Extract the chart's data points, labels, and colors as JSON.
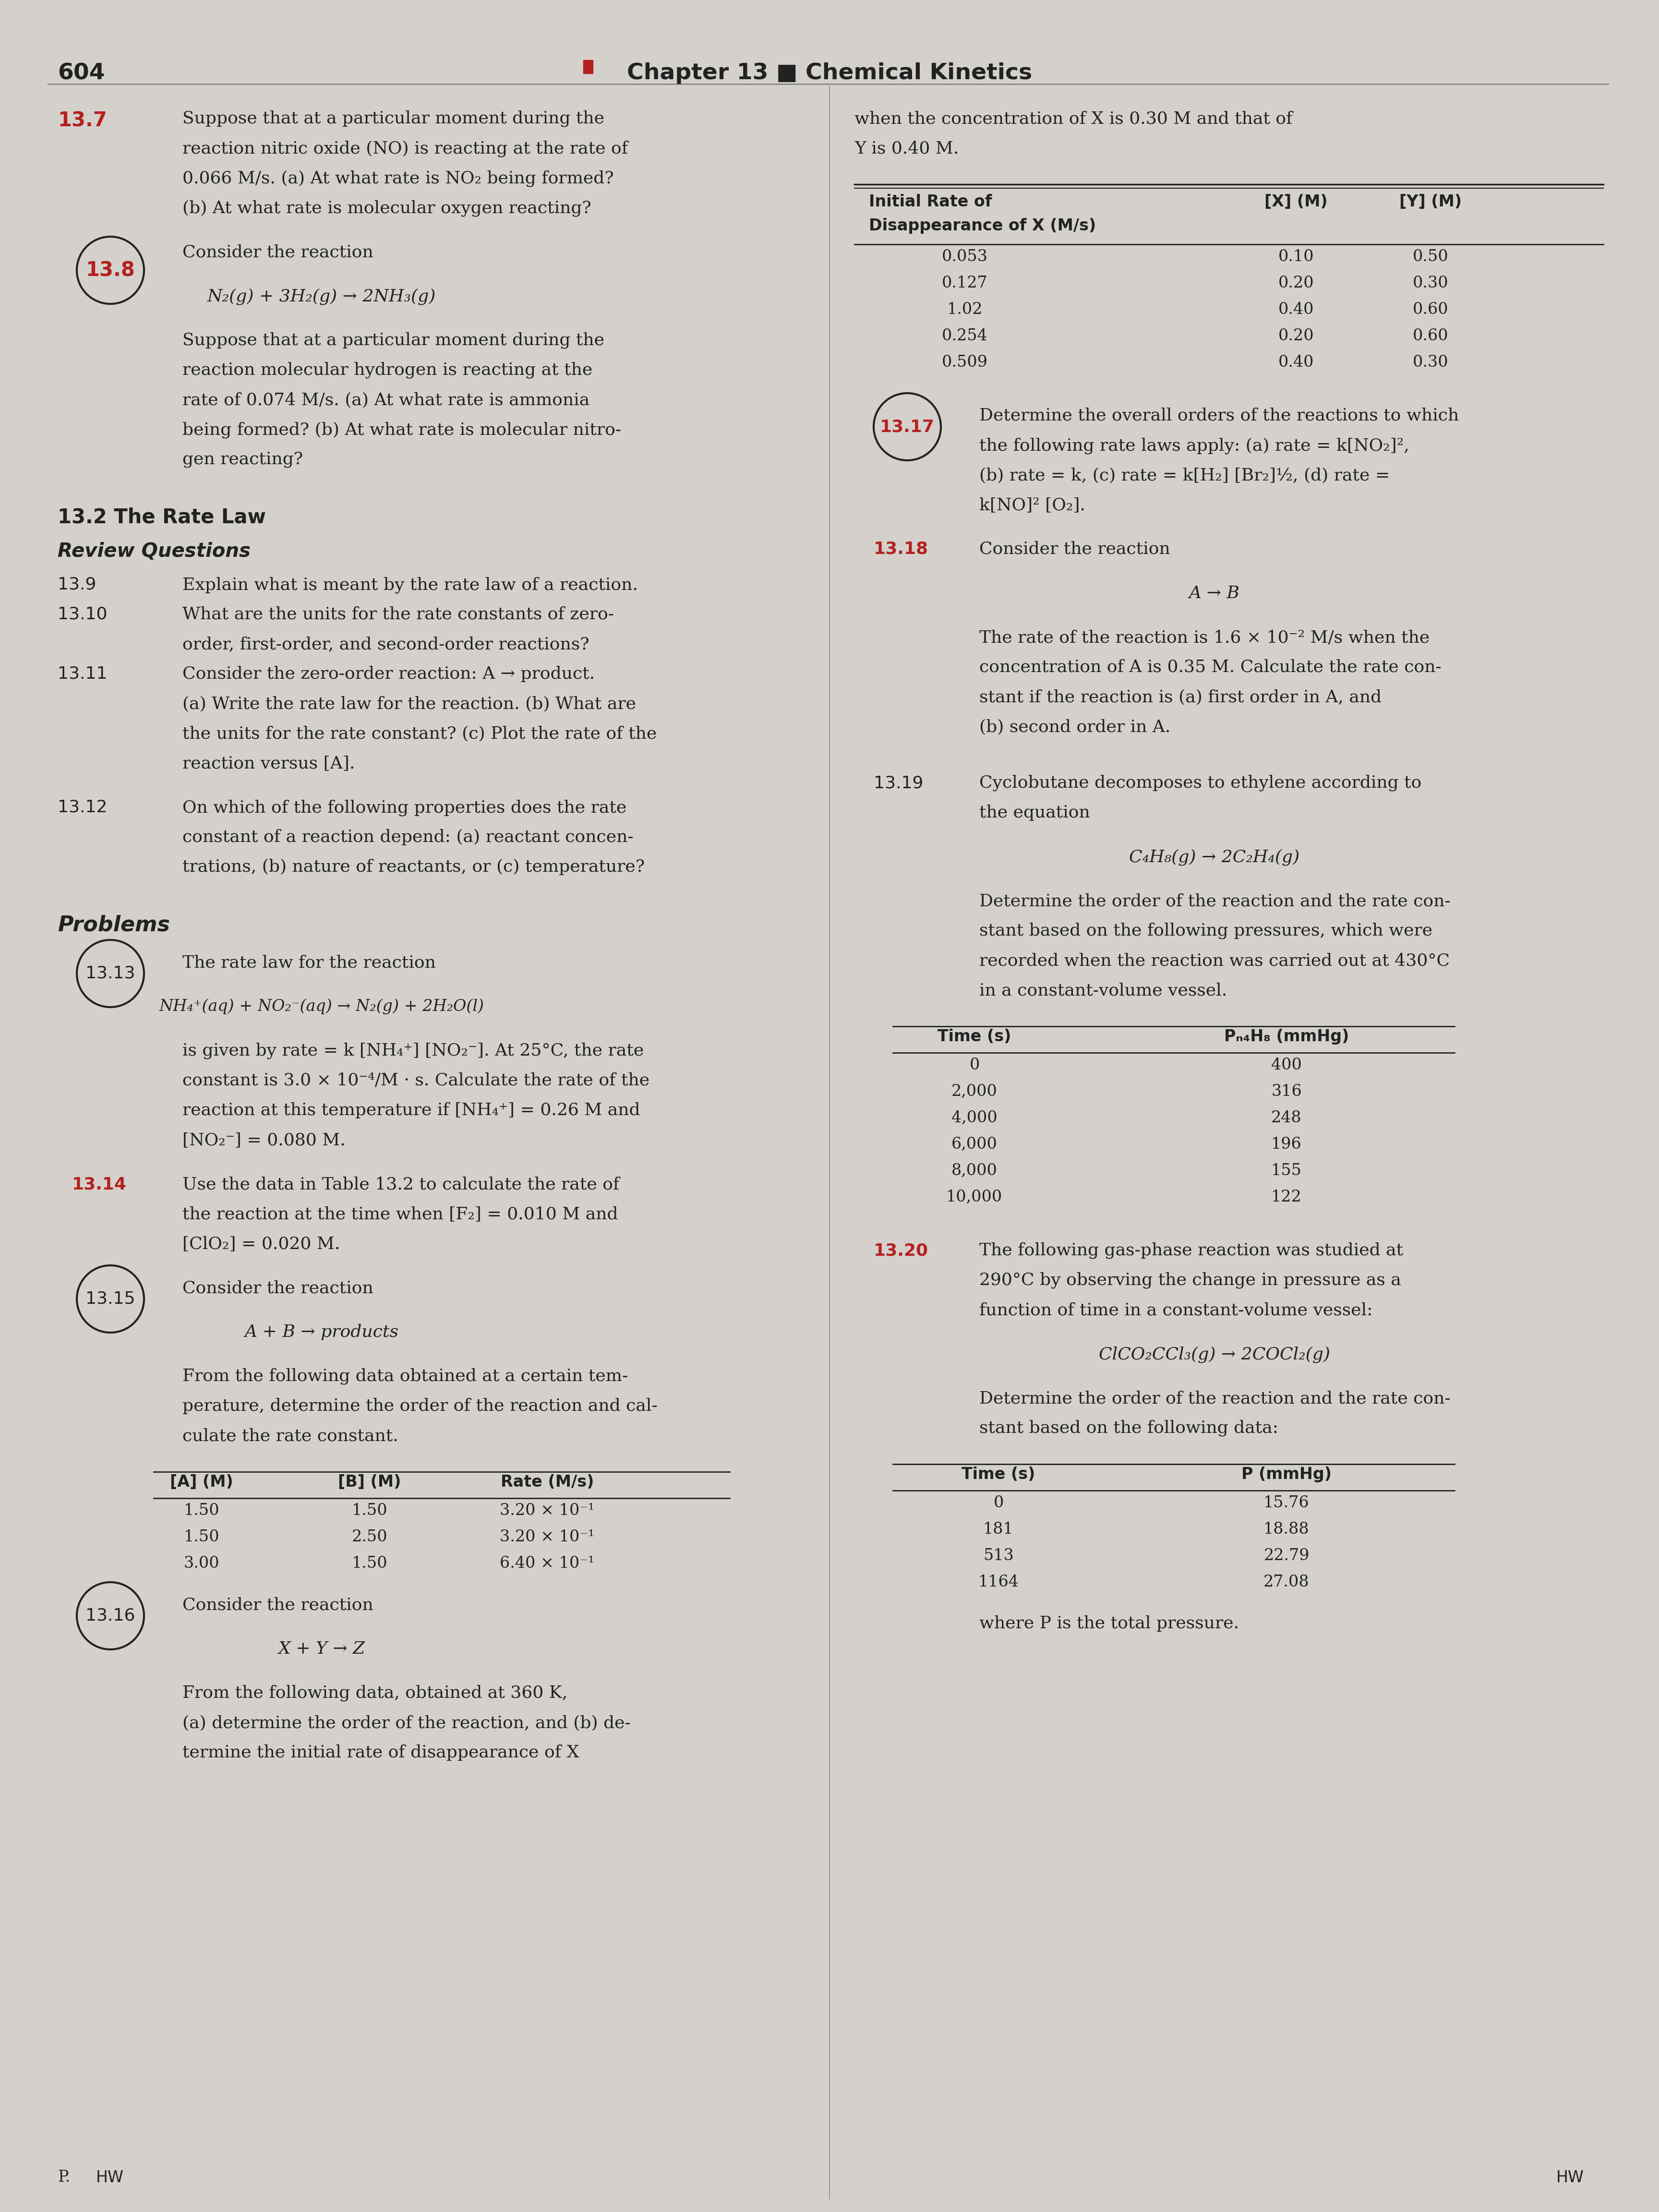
{
  "page_number": "604",
  "chapter_header": "Chapter 13 ■ Chemical Kinetics",
  "bg_color": "#d4d1cc",
  "text_color": "#222222",
  "red_color": "#b52020",
  "body_font_size": 28,
  "small_font_size": 26,
  "section_header_size": 30,
  "problem_num_size": 27,
  "header_font_size": 32,
  "problem_13_7_continuation": [
    "Suppose that at a particular moment during the",
    "reaction nitric oxide (NO) is reacting at the rate of",
    "0.066 M/s. (a) At what rate is NO₂ being formed?",
    "(b) At what rate is molecular oxygen reacting?"
  ],
  "problem_13_8_label": "13.8",
  "problem_13_8_text": [
    "Consider the reaction",
    "",
    "N₂(g) + 3H₂(g) → 2NH₃(g)",
    "",
    "Suppose that at a particular moment during the",
    "reaction molecular hydrogen is reacting at the",
    "rate of 0.074 M/s. (a) At what rate is ammonia",
    "being formed? (b) At what rate is molecular nitro-",
    "gen reacting?"
  ],
  "section_13_2_header": "13.2 The Rate Law",
  "review_questions_header": "Review Questions",
  "problem_13_9_label": "13.9",
  "problem_13_9_text": "Explain what is meant by the rate law of a reaction.",
  "problem_13_10_label": "13.10",
  "problem_13_10_text": [
    "What are the units for the rate constants of zero-",
    "order, first-order, and second-order reactions?"
  ],
  "problem_13_11_label": "13.11",
  "problem_13_11_text": [
    "Consider the zero-order reaction: A → product.",
    "(a) Write the rate law for the reaction. (b) What are",
    "the units for the rate constant? (c) Plot the rate of the",
    "reaction versus [A]."
  ],
  "problem_13_12_label": "13.12",
  "problem_13_12_text": [
    "On which of the following properties does the rate",
    "constant of a reaction depend: (a) reactant concen-",
    "trations, (b) nature of reactants, or (c) temperature?"
  ],
  "problems_header": "Problems",
  "problem_13_13_label": "13.13",
  "problem_13_13_text": [
    "The rate law for the reaction",
    "",
    "NH₄⁺(aq) + NO₂⁻(aq) → N₂(g) + 2H₂O(l)",
    "",
    "is given by rate = k [NH₄⁺] [NO₂⁻]. At 25°C, the rate",
    "constant is 3.0 × 10⁻⁴/M · s. Calculate the rate of the",
    "reaction at this temperature if [NH₄⁺] = 0.26 M and",
    "[NO₂⁻] = 0.080 M."
  ],
  "problem_13_14_label": "13.14",
  "problem_13_14_text": [
    "Use the data in Table 13.2 to calculate the rate of",
    "the reaction at the time when [F₂] = 0.010 M and",
    "[ClO₂] = 0.020 M."
  ],
  "problem_13_15_label": "13.15",
  "problem_13_15_text": [
    "Consider the reaction",
    "",
    "A + B → products",
    "",
    "From the following data obtained at a certain tem-",
    "perature, determine the order of the reaction and cal-",
    "culate the rate constant."
  ],
  "table_13_15_headers": [
    "[A] (M)",
    "[B] (M)",
    "Rate (M/s)"
  ],
  "table_13_15_data": [
    [
      "1.50",
      "1.50",
      "3.20 × 10⁻¹"
    ],
    [
      "1.50",
      "2.50",
      "3.20 × 10⁻¹"
    ],
    [
      "3.00",
      "1.50",
      "6.40 × 10⁻¹"
    ]
  ],
  "problem_13_16_label": "13.16",
  "problem_13_16_text": [
    "Consider the reaction",
    "",
    "X + Y → Z",
    "",
    "From the following data, obtained at 360 K,",
    "(a) determine the order of the reaction, and (b) de-",
    "termine the initial rate of disappearance of X"
  ],
  "right_col_continuation_text": [
    "when the concentration of X is 0.30 M and that of",
    "Y is 0.40 M."
  ],
  "table_13_16_header1": "Initial Rate of",
  "table_13_16_header2": "Disappearance of X (M/s)",
  "table_13_16_header3": "[X] (M)",
  "table_13_16_header4": "[Y] (M)",
  "table_13_16_data": [
    [
      "0.053",
      "0.10",
      "0.50"
    ],
    [
      "0.127",
      "0.20",
      "0.30"
    ],
    [
      "1.02",
      "0.40",
      "0.60"
    ],
    [
      "0.254",
      "0.20",
      "0.60"
    ],
    [
      "0.509",
      "0.40",
      "0.30"
    ]
  ],
  "problem_13_17_label": "13.17",
  "problem_13_17_text": [
    "Determine the overall orders of the reactions to which",
    "the following rate laws apply: (a) rate = k[NO₂]²,",
    "(b) rate = k, (c) rate = k[H₂] [Br₂]½, (d) rate =",
    "k[NO]² [O₂]."
  ],
  "problem_13_18_label": "13.18",
  "problem_13_18_text": [
    "Consider the reaction",
    "",
    "A → B",
    "",
    "The rate of the reaction is 1.6 × 10⁻² M/s when the",
    "concentration of A is 0.35 M. Calculate the rate con-",
    "stant if the reaction is (a) first order in A, and",
    "(b) second order in A."
  ],
  "problem_13_19_label": "13.19",
  "problem_13_19_text": [
    "Cyclobutane decomposes to ethylene according to",
    "the equation",
    "",
    "C₄H₈(g) → 2C₂H₄(g)",
    "",
    "Determine the order of the reaction and the rate con-",
    "stant based on the following pressures, which were",
    "recorded when the reaction was carried out at 430°C",
    "in a constant-volume vessel."
  ],
  "table_13_19_header1": "Time (s)",
  "table_13_19_header2": "Pₙ₄H₈ (mmHg)",
  "table_13_19_data": [
    [
      "0",
      "400"
    ],
    [
      "2,000",
      "316"
    ],
    [
      "4,000",
      "248"
    ],
    [
      "6,000",
      "196"
    ],
    [
      "8,000",
      "155"
    ],
    [
      "10,000",
      "122"
    ]
  ],
  "problem_13_20_label": "13.20",
  "problem_13_20_text": [
    "The following gas-phase reaction was studied at",
    "290°C by observing the change in pressure as a",
    "function of time in a constant-volume vessel:",
    "",
    "ClCO₂CCl₃(g) → 2COCl₂(g)",
    "",
    "Determine the order of the reaction and the rate con-",
    "stant based on the following data:"
  ],
  "table_13_20_header1": "Time (s)",
  "table_13_20_header2": "P (mmHg)",
  "table_13_20_data": [
    [
      "0",
      "15.76"
    ],
    [
      "181",
      "18.88"
    ],
    [
      "513",
      "22.79"
    ],
    [
      "1164",
      "27.08"
    ]
  ],
  "problem_13_20_note": "where P is the total pressure.",
  "hw_label": "HW"
}
